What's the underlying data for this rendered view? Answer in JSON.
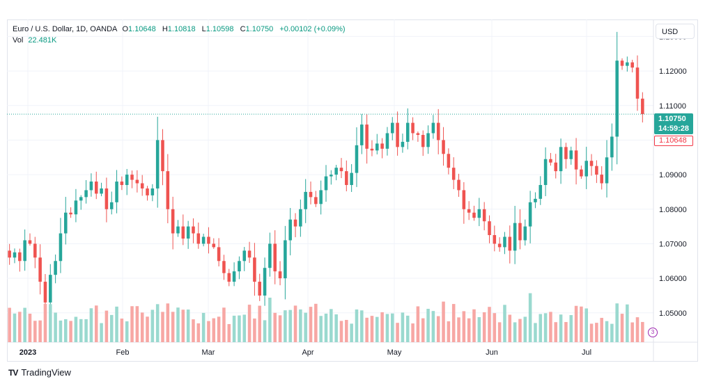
{
  "symbol": {
    "name": "Euro / U.S. Dollar, 1D, OANDA",
    "open_label": "O",
    "open": "1.10648",
    "high_label": "H",
    "high": "1.10818",
    "low_label": "L",
    "low": "1.10598",
    "close_label": "C",
    "close": "1.10750",
    "change": "+0.00102 (+0.09%)"
  },
  "volume": {
    "label": "Vol",
    "value": "22.481K"
  },
  "currency": "USD",
  "last_price": {
    "price": "1.10750",
    "countdown": "14:59:28",
    "open_price": "1.10648"
  },
  "brand": "TradingView",
  "brand_logo": "TV",
  "volume_marker": "3",
  "colors": {
    "up": "#26a69a",
    "down": "#ef5350",
    "up_vol": "#9ad9cf",
    "down_vol": "#f7a7a4"
  },
  "chart_data": {
    "type": "candlestick",
    "y_ticks": [
      "1.13000",
      "1.12000",
      "1.11000",
      "1.10000",
      "1.09000",
      "1.08000",
      "1.07000",
      "1.06000",
      "1.05000"
    ],
    "ylim": [
      1.0415,
      1.1325
    ],
    "x_ticks": [
      "2023",
      "Feb",
      "Mar",
      "Apr",
      "May",
      "Jun",
      "Jul"
    ],
    "grid": true,
    "close_series": [
      1.066,
      1.0675,
      1.065,
      1.071,
      1.07,
      1.066,
      1.059,
      1.053,
      1.061,
      1.065,
      1.073,
      1.079,
      1.0785,
      1.0825,
      1.0835,
      1.0855,
      1.088,
      1.0845,
      1.086,
      1.08,
      1.082,
      1.088,
      1.087,
      1.09,
      1.0885,
      1.0875,
      1.086,
      1.084,
      1.086,
      1.1,
      1.091,
      1.08,
      1.073,
      1.075,
      1.0715,
      1.075,
      1.073,
      1.07,
      1.072,
      1.07,
      1.069,
      1.065,
      1.0615,
      1.059,
      1.062,
      1.065,
      1.068,
      1.066,
      1.059,
      1.055,
      1.063,
      1.07,
      1.062,
      1.06,
      1.071,
      1.077,
      1.075,
      1.08,
      1.085,
      1.0835,
      1.0815,
      1.0855,
      1.0895,
      1.09,
      1.092,
      1.091,
      1.087,
      1.0905,
      1.0985,
      1.1045,
      1.0975,
      1.097,
      1.099,
      1.0975,
      1.102,
      1.105,
      1.098,
      1.0995,
      1.105,
      1.102,
      1.1015,
      1.098,
      1.102,
      1.105,
      1.1,
      1.096,
      1.092,
      1.0885,
      1.0855,
      1.08,
      1.079,
      1.0775,
      1.08,
      1.0765,
      1.0725,
      1.07,
      1.069,
      1.072,
      1.068,
      1.076,
      1.071,
      1.075,
      1.082,
      1.083,
      1.087,
      1.0945,
      1.0935,
      1.091,
      1.098,
      1.0945,
      1.097,
      1.0915,
      1.0895,
      1.094,
      1.0925,
      1.09,
      1.0875,
      1.095,
      1.101,
      1.123,
      1.1215,
      1.1225,
      1.121,
      1.112,
      1.1075
    ]
  }
}
